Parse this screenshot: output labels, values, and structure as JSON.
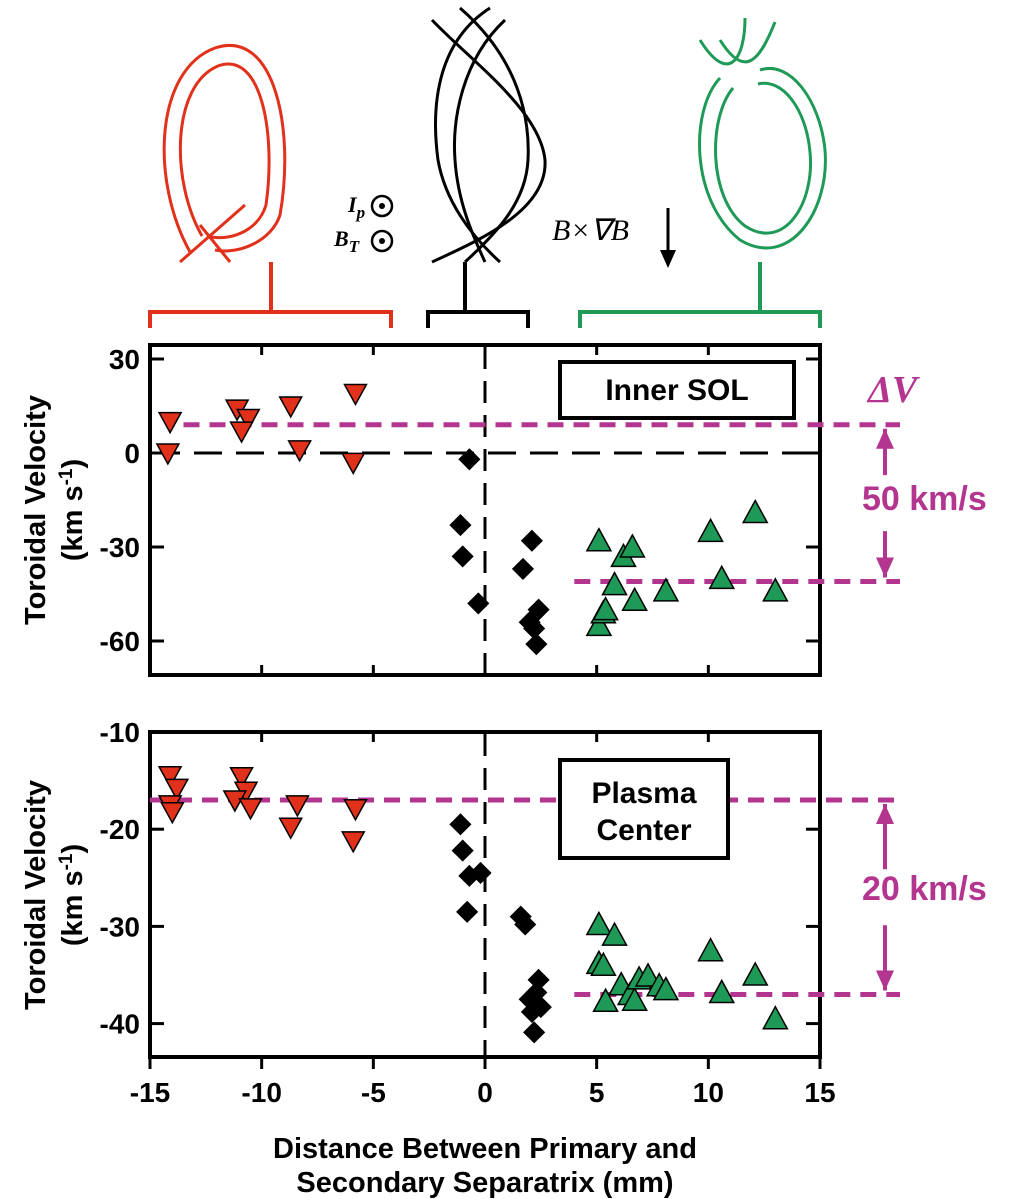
{
  "colors": {
    "lsn": "#e1311a",
    "dn": "#000000",
    "usn": "#1e9a56",
    "annotation": "#b4358f"
  },
  "top_labels": {
    "ip": "I",
    "ip_sub": "p",
    "bt": "B",
    "bt_sub": "T",
    "drift": "B×∇B"
  },
  "chart_data": [
    {
      "type": "scatter",
      "title": "",
      "box_label": "Inner SOL",
      "ylabel_line1": "Toroidal Velocity",
      "ylabel_line2": "(km s",
      "ylabel_sup": "-1",
      "ylabel_close": ")",
      "xlim": [
        -15,
        15
      ],
      "ylim": [
        -70,
        30
      ],
      "y_ticks": [
        30,
        0,
        -30,
        -60
      ],
      "x_ticks": [],
      "zero_line_y": 0,
      "ref_lines": [
        9,
        -41
      ],
      "delta_symbol": "ΔV",
      "delta_label": "50 km/s",
      "series": [
        {
          "name": "",
          "color_key": "lsn",
          "marker": "triangle-down",
          "points": [
            [
              -14.1,
              10
            ],
            [
              -14.2,
              0
            ],
            [
              -11.1,
              14
            ],
            [
              -10.6,
              11
            ],
            [
              -10.9,
              7
            ],
            [
              -8.7,
              15
            ],
            [
              -8.3,
              1
            ],
            [
              -5.8,
              19
            ],
            [
              -5.9,
              -3
            ]
          ]
        },
        {
          "name": "",
          "color_key": "dn",
          "marker": "diamond",
          "points": [
            [
              -0.7,
              -2
            ],
            [
              -1.1,
              -23
            ],
            [
              -1.0,
              -33
            ],
            [
              -0.3,
              -48
            ],
            [
              2.1,
              -28
            ],
            [
              1.7,
              -37
            ],
            [
              2.0,
              -54
            ],
            [
              2.4,
              -50
            ],
            [
              2.2,
              -56
            ],
            [
              2.3,
              -61
            ]
          ]
        },
        {
          "name": "",
          "color_key": "usn",
          "marker": "triangle-up",
          "points": [
            [
              5.1,
              -28
            ],
            [
              5.1,
              -55
            ],
            [
              5.3,
              -51
            ],
            [
              5.4,
              -50
            ],
            [
              5.8,
              -42
            ],
            [
              6.2,
              -33
            ],
            [
              6.6,
              -30
            ],
            [
              6.7,
              -47
            ],
            [
              8.1,
              -44
            ],
            [
              10.1,
              -25
            ],
            [
              10.6,
              -40
            ],
            [
              12.1,
              -19
            ],
            [
              13.0,
              -44
            ]
          ]
        }
      ]
    },
    {
      "type": "scatter",
      "title": "",
      "box_label_line1": "Plasma",
      "box_label_line2": "Center",
      "ylabel_line1": "Toroidal Velocity",
      "ylabel_line2": "(km s",
      "ylabel_sup": "-1",
      "ylabel_close": ")",
      "xlabel_line1": "Distance Between Primary and",
      "xlabel_line2": "Secondary Separatrix (mm)",
      "xlim": [
        -15,
        15
      ],
      "ylim": [
        -45,
        -10
      ],
      "y_ticks": [
        -10,
        -20,
        -30,
        -40
      ],
      "x_ticks": [
        -15,
        -10,
        -5,
        0,
        5,
        10,
        15
      ],
      "ref_lines": [
        -17,
        -37
      ],
      "delta_label": "20 km/s",
      "series": [
        {
          "name": "",
          "color_key": "lsn",
          "marker": "triangle-down",
          "points": [
            [
              -14.1,
              -14.5
            ],
            [
              -13.8,
              -15.8
            ],
            [
              -14.1,
              -17.5
            ],
            [
              -14.0,
              -18.2
            ],
            [
              -10.9,
              -14.6
            ],
            [
              -10.7,
              -16.1
            ],
            [
              -11.2,
              -17.0
            ],
            [
              -10.5,
              -17.8
            ],
            [
              -8.7,
              -19.8
            ],
            [
              -8.4,
              -17.5
            ],
            [
              -5.8,
              -17.9
            ],
            [
              -5.9,
              -21.2
            ]
          ]
        },
        {
          "name": "",
          "color_key": "dn",
          "marker": "diamond",
          "points": [
            [
              -1.1,
              -19.5
            ],
            [
              -1.0,
              -22.2
            ],
            [
              -0.7,
              -24.8
            ],
            [
              -0.2,
              -24.5
            ],
            [
              -0.8,
              -28.5
            ],
            [
              1.6,
              -29.0
            ],
            [
              1.8,
              -29.8
            ],
            [
              2.4,
              -35.5
            ],
            [
              2.3,
              -36.8
            ],
            [
              2.0,
              -37.5
            ],
            [
              2.5,
              -38.3
            ],
            [
              2.1,
              -38.8
            ],
            [
              2.2,
              -40.9
            ]
          ]
        },
        {
          "name": "",
          "color_key": "usn",
          "marker": "triangle-up",
          "points": [
            [
              5.1,
              -29.8
            ],
            [
              5.1,
              -33.8
            ],
            [
              5.3,
              -34.0
            ],
            [
              5.4,
              -37.7
            ],
            [
              5.8,
              -30.9
            ],
            [
              6.1,
              -36.0
            ],
            [
              6.5,
              -37.0
            ],
            [
              6.7,
              -37.6
            ],
            [
              6.9,
              -35.4
            ],
            [
              7.3,
              -35.1
            ],
            [
              7.8,
              -36.1
            ],
            [
              8.1,
              -36.5
            ],
            [
              10.1,
              -32.5
            ],
            [
              10.6,
              -36.8
            ],
            [
              12.1,
              -35.0
            ],
            [
              13.0,
              -39.5
            ]
          ]
        }
      ]
    }
  ]
}
